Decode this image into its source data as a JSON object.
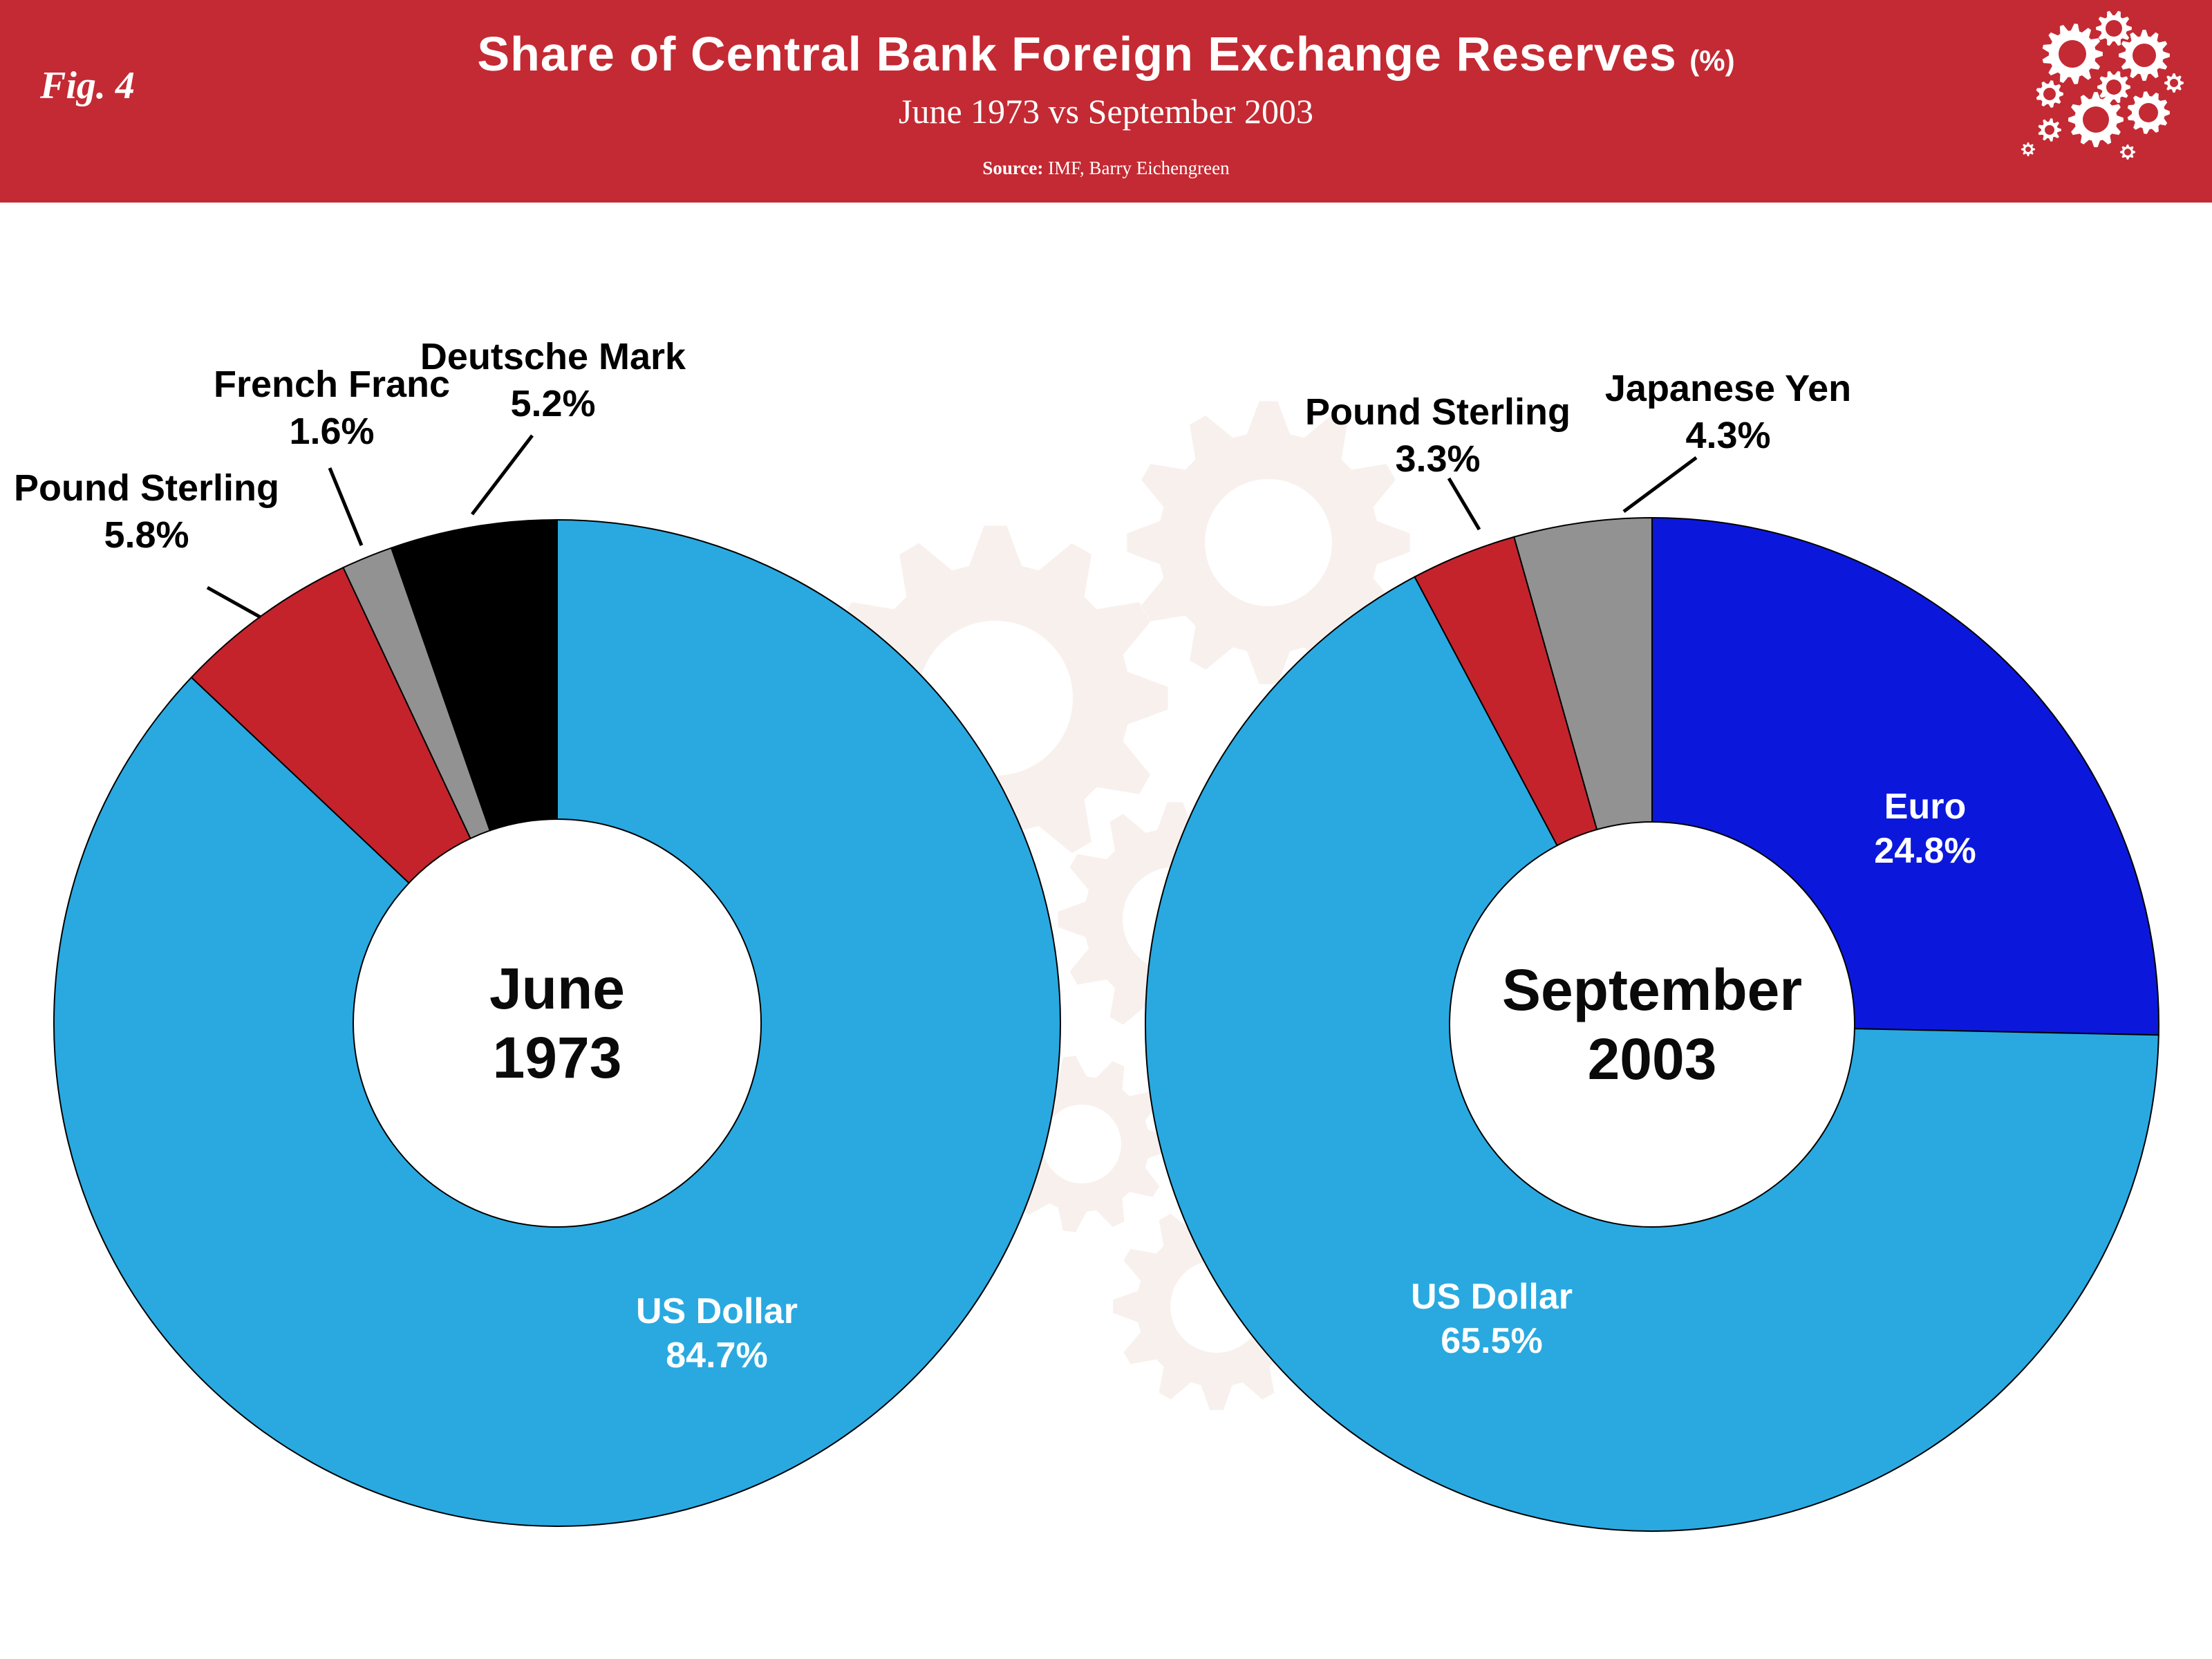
{
  "header": {
    "fig_label": "Fig. 4",
    "title": "Share of Central Bank Foreign Exchange Reserves",
    "title_suffix": "(%)",
    "subtitle": "June 1973 vs September 2003",
    "source_prefix": "Source:",
    "source_text": " IMF, Barry Eichengreen",
    "background_color": "#C42A33",
    "text_color": "#FFFFFF"
  },
  "watermark": {
    "name": "gears-watermark",
    "color": "#F8F0ED"
  },
  "logo": {
    "name": "gears-logo",
    "color": "#FFFFFF"
  },
  "chart_data": [
    {
      "type": "pie",
      "donut": true,
      "title": "June 1973",
      "center_label_line1": "June",
      "center_label_line2": "1973",
      "start_angle_deg": 0,
      "direction": "clockwise",
      "legend_position": "none",
      "slices": [
        {
          "label": "US Dollar",
          "value": 84.7,
          "pct_label": "84.7%",
          "color": "#29A9E0",
          "label_placement": "inside"
        },
        {
          "label": "Pound Sterling",
          "value": 5.8,
          "pct_label": "5.8%",
          "color": "#C4232C",
          "label_placement": "outside"
        },
        {
          "label": "French Franc",
          "value": 1.6,
          "pct_label": "1.6%",
          "color": "#929292",
          "label_placement": "outside"
        },
        {
          "label": "Deutsche Mark",
          "value": 5.2,
          "pct_label": "5.2%",
          "color": "#000000",
          "label_placement": "outside"
        }
      ]
    },
    {
      "type": "pie",
      "donut": true,
      "title": "September 2003",
      "center_label_line1": "September",
      "center_label_line2": "2003",
      "start_angle_deg": 0,
      "direction": "clockwise",
      "legend_position": "none",
      "slices": [
        {
          "label": "Euro",
          "value": 24.8,
          "pct_label": "24.8%",
          "color": "#0B18DC",
          "label_placement": "inside"
        },
        {
          "label": "US Dollar",
          "value": 65.5,
          "pct_label": "65.5%",
          "color": "#29A9E0",
          "label_placement": "inside"
        },
        {
          "label": "Pound Sterling",
          "value": 3.3,
          "pct_label": "3.3%",
          "color": "#C4232C",
          "label_placement": "outside"
        },
        {
          "label": "Japanese Yen",
          "value": 4.3,
          "pct_label": "4.3%",
          "color": "#929292",
          "label_placement": "outside"
        }
      ]
    }
  ]
}
